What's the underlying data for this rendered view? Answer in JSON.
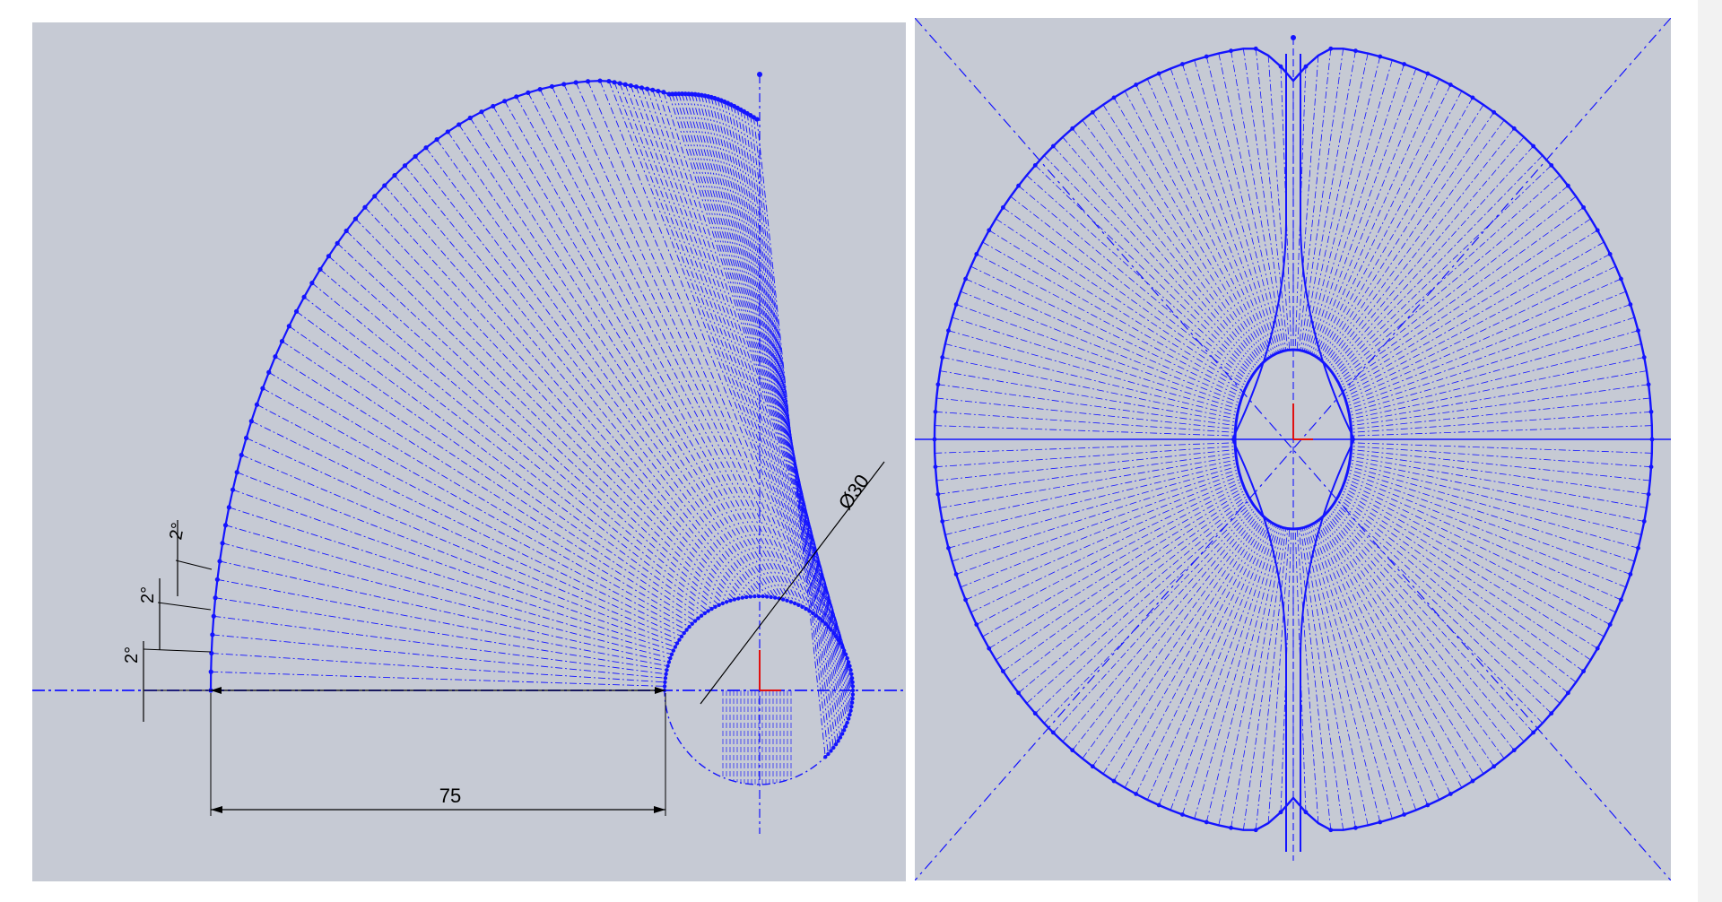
{
  "left_sketch": {
    "dimension_75": "75",
    "dimension_diameter": "Ø30",
    "angle_labels": [
      "2°",
      "2°",
      "2°"
    ]
  },
  "right_sketch": {},
  "colors": {
    "background": "#c6cad4",
    "sketch_blue": "#1414ff",
    "dimension_black": "#000000",
    "origin_red": "#e01010"
  }
}
